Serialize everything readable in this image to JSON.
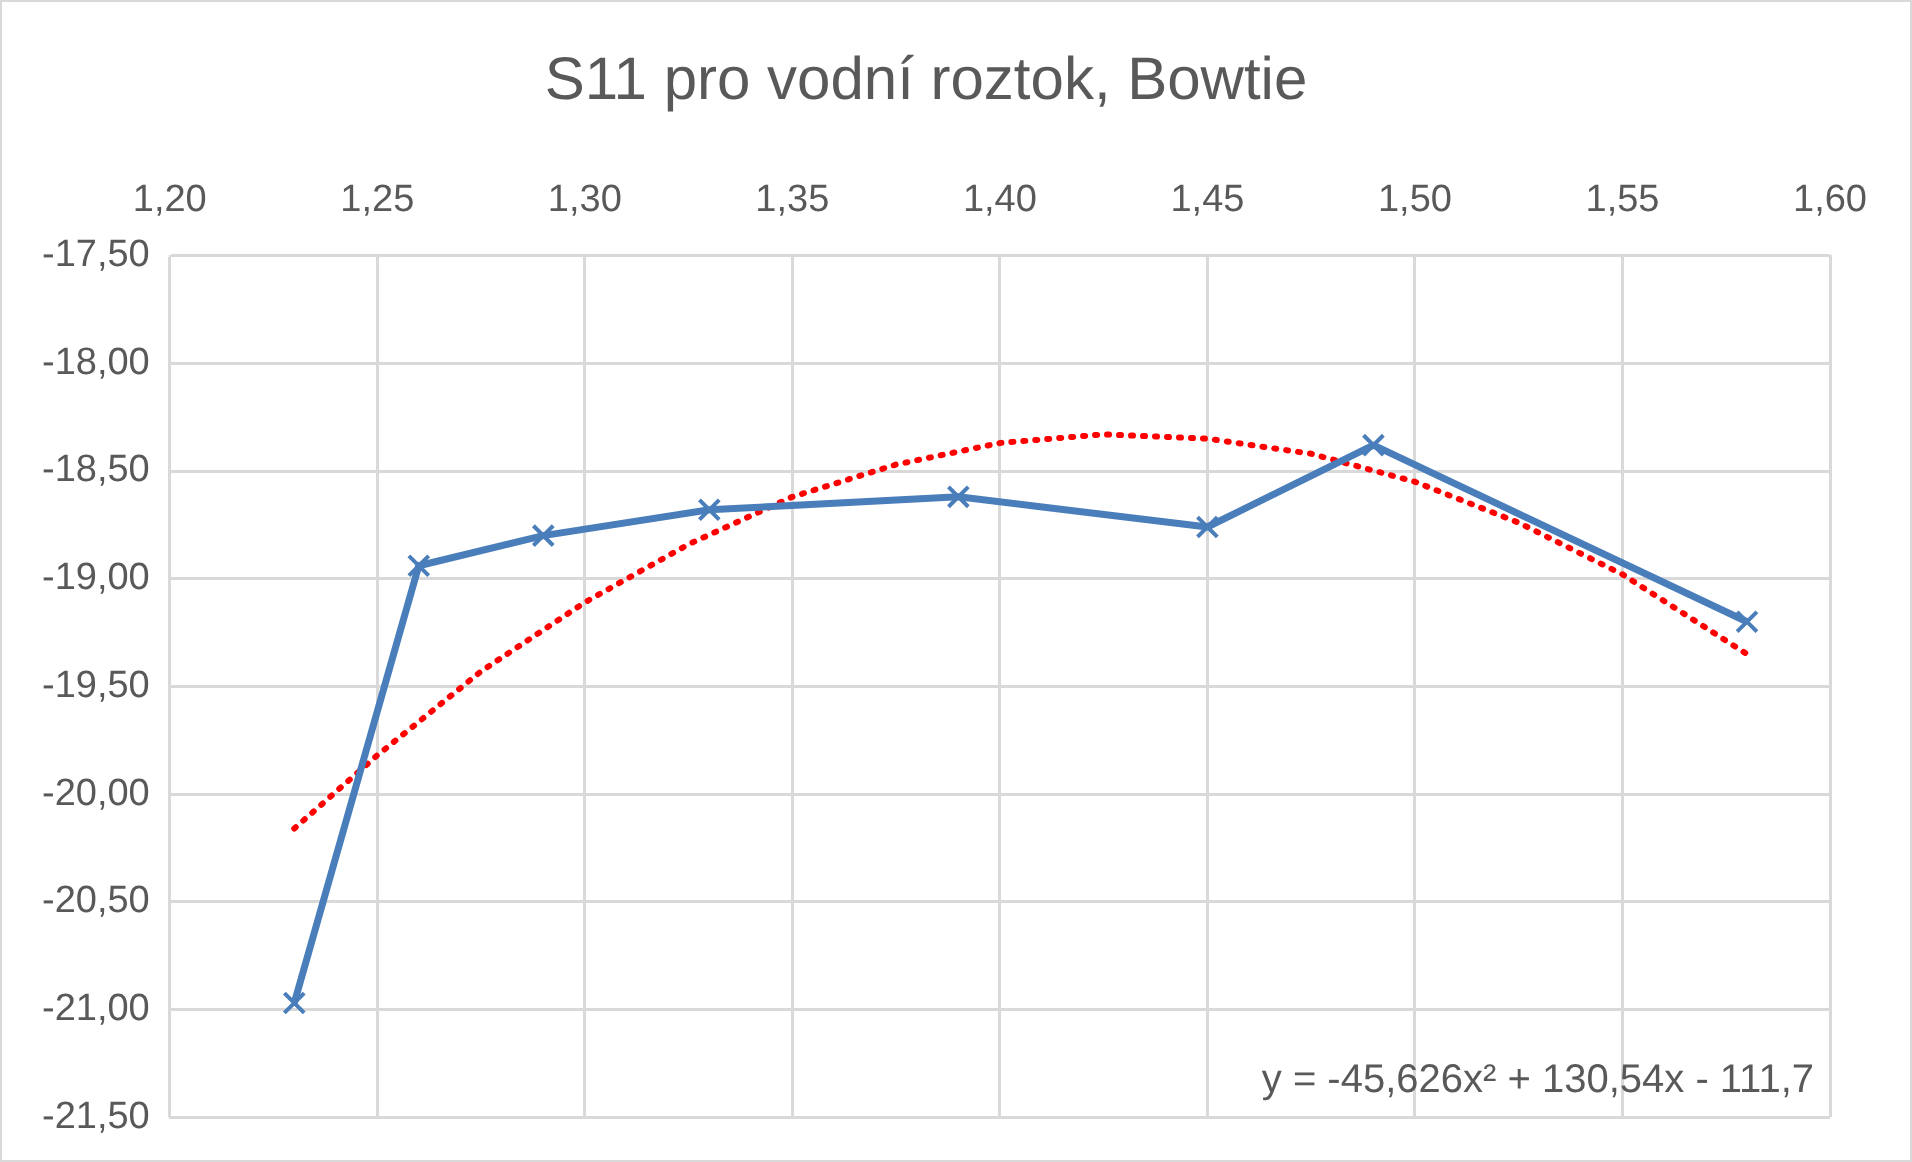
{
  "chart_data": {
    "type": "line",
    "title": "S11 pro vodní roztok, Bowtie",
    "x": [
      1.23,
      1.26,
      1.29,
      1.33,
      1.39,
      1.45,
      1.49,
      1.58
    ],
    "series": [
      {
        "color": "#4a7ebb",
        "marker": "cross",
        "line_style": "solid",
        "values": [
          -20.97,
          -18.94,
          -18.8,
          -18.68,
          -18.62,
          -18.76,
          -18.38,
          -19.2
        ]
      },
      {
        "color": "#ff0000",
        "marker": "none",
        "line_style": "dotted",
        "x": [
          1.23,
          1.25,
          1.275,
          1.3,
          1.325,
          1.35,
          1.375,
          1.4,
          1.425,
          1.45,
          1.475,
          1.5,
          1.525,
          1.55,
          1.58
        ],
        "values": [
          -20.16,
          -19.82,
          -19.43,
          -19.11,
          -18.84,
          -18.62,
          -18.47,
          -18.37,
          -18.33,
          -18.35,
          -18.42,
          -18.55,
          -18.74,
          -18.98,
          -19.35
        ]
      }
    ],
    "xlim": [
      1.2,
      1.6
    ],
    "xticks": [
      {
        "value": 1.2,
        "label": "1,20"
      },
      {
        "value": 1.25,
        "label": "1,25"
      },
      {
        "value": 1.3,
        "label": "1,30"
      },
      {
        "value": 1.35,
        "label": "1,35"
      },
      {
        "value": 1.4,
        "label": "1,40"
      },
      {
        "value": 1.45,
        "label": "1,45"
      },
      {
        "value": 1.5,
        "label": "1,50"
      },
      {
        "value": 1.55,
        "label": "1,55"
      },
      {
        "value": 1.6,
        "label": "1,60"
      }
    ],
    "ylim": [
      -21.5,
      -17.5
    ],
    "yticks": [
      {
        "value": -21.5,
        "label": "-21,50"
      },
      {
        "value": -21,
        "label": "-21,00"
      },
      {
        "value": -20.5,
        "label": "-20,50"
      },
      {
        "value": -20,
        "label": "-20,00"
      },
      {
        "value": -19.5,
        "label": "-19,50"
      },
      {
        "value": -19,
        "label": "-19,00"
      },
      {
        "value": -18.5,
        "label": "-18,50"
      },
      {
        "value": -18,
        "label": "-18,00"
      },
      {
        "value": -17.5,
        "label": "-17,50"
      }
    ],
    "grid": true,
    "legend": false,
    "annotations": [
      "y = -45,626x² + 130,54x - 111,7"
    ]
  }
}
